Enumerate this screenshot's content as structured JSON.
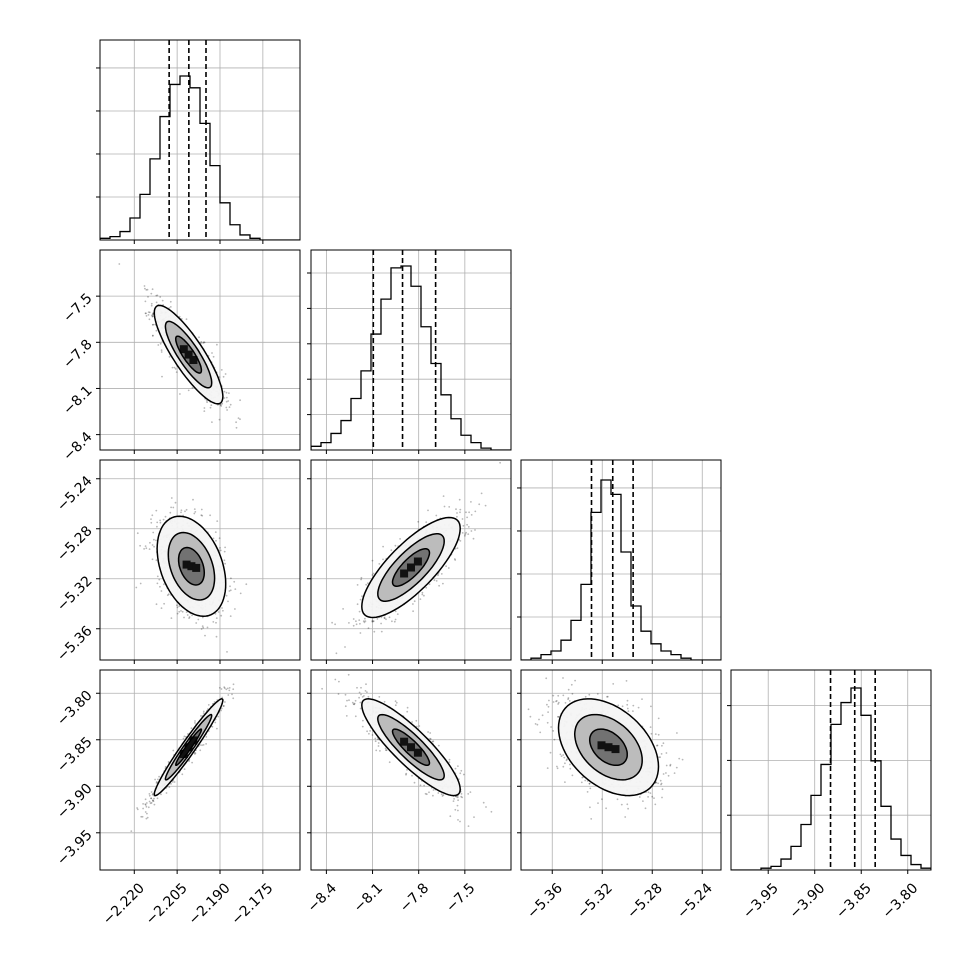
{
  "chart_data": {
    "type": "corner",
    "grid": true,
    "parameters": [
      {
        "index": 0,
        "range": [
          -2.232,
          -2.162
        ],
        "ticks": [
          -2.22,
          -2.205,
          -2.19,
          -2.175
        ],
        "tick_labels": [
          "−2.220",
          "−2.205",
          "−2.190",
          "−2.175"
        ],
        "quantiles": [
          -2.2078,
          -2.2009,
          -2.1949
        ]
      },
      {
        "index": 1,
        "range": [
          -8.5,
          -7.2
        ],
        "ticks": [
          -8.4,
          -8.1,
          -7.8,
          -7.5
        ],
        "tick_labels": [
          "−8.4",
          "−8.1",
          "−7.8",
          "−7.5"
        ],
        "quantiles": [
          -8.095,
          -7.905,
          -7.69
        ]
      },
      {
        "index": 2,
        "range": [
          -5.385,
          -5.225
        ],
        "ticks": [
          -5.36,
          -5.32,
          -5.28,
          -5.24
        ],
        "tick_labels": [
          "−5.36",
          "−5.32",
          "−5.28",
          "−5.24"
        ],
        "quantiles": [
          -5.3286,
          -5.3116,
          -5.2953
        ]
      },
      {
        "index": 3,
        "range": [
          -3.99,
          -3.775
        ],
        "ticks": [
          -3.95,
          -3.9,
          -3.85,
          -3.8
        ],
        "tick_labels": [
          "−3.95",
          "−3.90",
          "−3.85",
          "−3.80"
        ],
        "quantiles": [
          -3.883,
          -3.857,
          -3.835
        ]
      }
    ],
    "marginals": [
      {
        "param": 0,
        "counts": [
          1,
          2,
          5,
          13,
          27,
          48,
          73,
          92,
          97,
          90,
          69,
          44,
          22,
          9,
          3,
          1,
          0,
          0,
          0,
          0
        ],
        "peak_fraction": 0.82,
        "yticks": 4
      },
      {
        "param": 1,
        "counts": [
          2,
          4,
          9,
          16,
          28,
          43,
          63,
          82,
          99,
          100,
          89,
          67,
          47,
          30,
          17,
          8,
          4,
          1,
          0,
          0
        ],
        "peak_fraction": 0.92,
        "yticks": 5
      },
      {
        "param": 2,
        "counts": [
          0,
          1,
          3,
          5,
          11,
          22,
          42,
          82,
          100,
          92,
          60,
          30,
          16,
          9,
          5,
          3,
          1,
          0,
          0,
          0
        ],
        "peak_fraction": 0.9,
        "yticks": 4
      },
      {
        "param": 3,
        "counts": [
          0,
          0,
          0,
          1,
          2,
          6,
          13,
          25,
          41,
          58,
          80,
          92,
          100,
          85,
          60,
          35,
          17,
          8,
          3,
          1
        ],
        "peak_fraction": 0.91,
        "yticks": 3
      }
    ],
    "joints": [
      {
        "row": 1,
        "col": 0,
        "center": [
          -2.201,
          -7.88
        ],
        "sd": [
          0.006,
          0.16
        ],
        "corr": -0.85
      },
      {
        "row": 2,
        "col": 0,
        "center": [
          -2.2,
          -5.31
        ],
        "sd": [
          0.006,
          0.02
        ],
        "corr": -0.35
      },
      {
        "row": 2,
        "col": 1,
        "center": [
          -7.85,
          -5.311
        ],
        "sd": [
          0.16,
          0.02
        ],
        "corr": 0.78
      },
      {
        "row": 3,
        "col": 0,
        "center": [
          -2.201,
          -3.858
        ],
        "sd": [
          0.006,
          0.026
        ],
        "corr": 0.97
      },
      {
        "row": 3,
        "col": 1,
        "center": [
          -7.85,
          -3.858
        ],
        "sd": [
          0.16,
          0.026
        ],
        "corr": -0.87
      },
      {
        "row": 3,
        "col": 2,
        "center": [
          -5.315,
          -3.858
        ],
        "sd": [
          0.02,
          0.026
        ],
        "corr": -0.4
      }
    ]
  }
}
